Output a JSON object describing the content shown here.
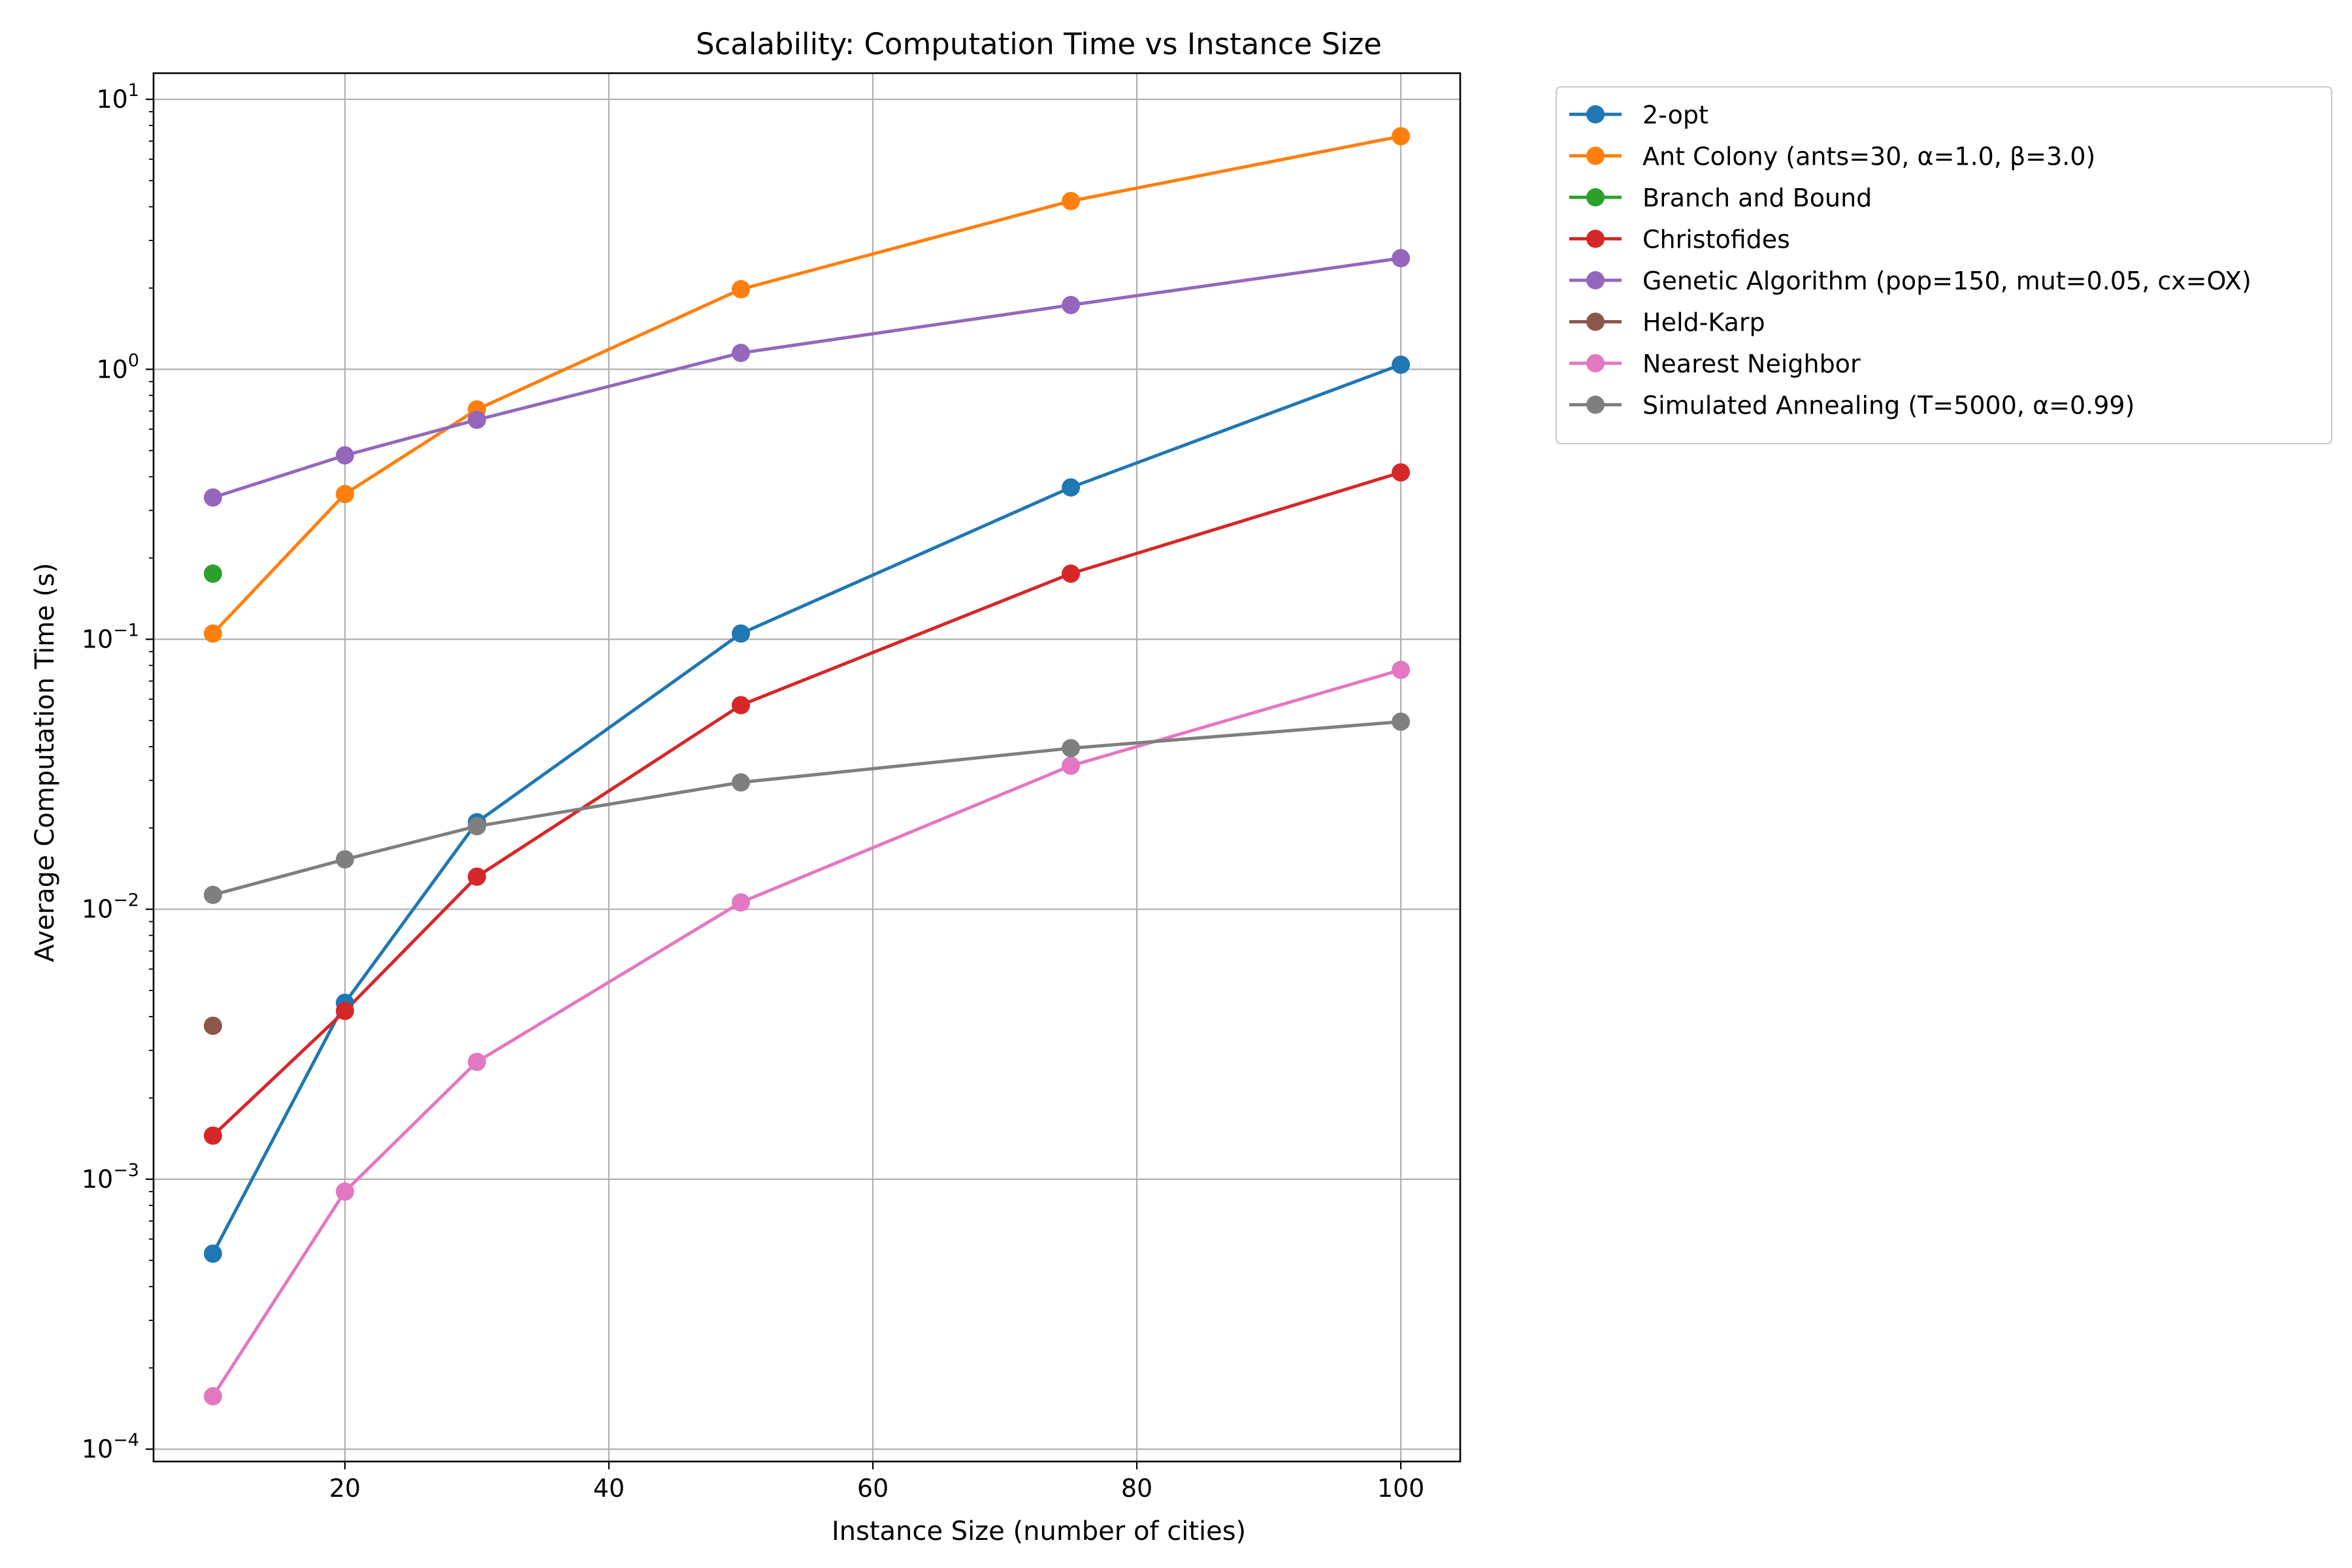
{
  "chart_data": {
    "type": "line",
    "title": "Scalability: Computation Time vs Instance Size",
    "xlabel": "Instance Size (number of cities)",
    "ylabel": "Average Computation Time (s)",
    "x_ticks": [
      20,
      40,
      60,
      80,
      100
    ],
    "x_tick_labels": [
      "20",
      "40",
      "60",
      "80",
      "100"
    ],
    "xlim": [
      5.5,
      104.5
    ],
    "y_scale": "log",
    "ylim": [
      9e-05,
      12.5
    ],
    "y_ticks": [
      0.0001,
      0.001,
      0.01,
      0.1,
      1,
      10
    ],
    "y_tick_labels": [
      {
        "base": "10",
        "exp": "−4"
      },
      {
        "base": "10",
        "exp": "−3"
      },
      {
        "base": "10",
        "exp": "−2"
      },
      {
        "base": "10",
        "exp": "−1"
      },
      {
        "base": "10",
        "exp": "0"
      },
      {
        "base": "10",
        "exp": "1"
      }
    ],
    "grid": true,
    "legend_position": "outside-right-top",
    "series": [
      {
        "name": "2-opt",
        "color": "#1f77b4",
        "x": [
          10,
          20,
          30,
          50,
          75,
          100
        ],
        "values": [
          0.00053,
          0.0045,
          0.021,
          0.105,
          0.365,
          1.04
        ]
      },
      {
        "name": "Ant Colony (ants=30, α=1.0, β=3.0)",
        "color": "#ff7f0e",
        "x": [
          10,
          20,
          30,
          50,
          75,
          100
        ],
        "values": [
          0.105,
          0.345,
          0.71,
          1.98,
          4.2,
          7.3
        ]
      },
      {
        "name": "Branch and Bound",
        "color": "#2ca02c",
        "x": [
          10
        ],
        "values": [
          0.175
        ]
      },
      {
        "name": "Christofides",
        "color": "#d62728",
        "x": [
          10,
          20,
          30,
          50,
          75,
          100
        ],
        "values": [
          0.00145,
          0.0042,
          0.0132,
          0.057,
          0.175,
          0.415
        ]
      },
      {
        "name": "Genetic Algorithm (pop=150, mut=0.05, cx=OX)",
        "color": "#9467bd",
        "x": [
          10,
          20,
          30,
          50,
          75,
          100
        ],
        "values": [
          0.335,
          0.48,
          0.65,
          1.15,
          1.73,
          2.58
        ]
      },
      {
        "name": "Held-Karp",
        "color": "#8c564b",
        "x": [
          10
        ],
        "values": [
          0.0037
        ]
      },
      {
        "name": "Nearest Neighbor",
        "color": "#e377c2",
        "x": [
          10,
          20,
          30,
          50,
          75,
          100
        ],
        "values": [
          0.000157,
          0.0009,
          0.00272,
          0.0106,
          0.034,
          0.077
        ]
      },
      {
        "name": "Simulated Annealing (T=5000, α=0.99)",
        "color": "#7f7f7f",
        "x": [
          10,
          20,
          30,
          50,
          75,
          100
        ],
        "values": [
          0.0113,
          0.0153,
          0.0203,
          0.0295,
          0.0395,
          0.0495
        ]
      }
    ]
  }
}
